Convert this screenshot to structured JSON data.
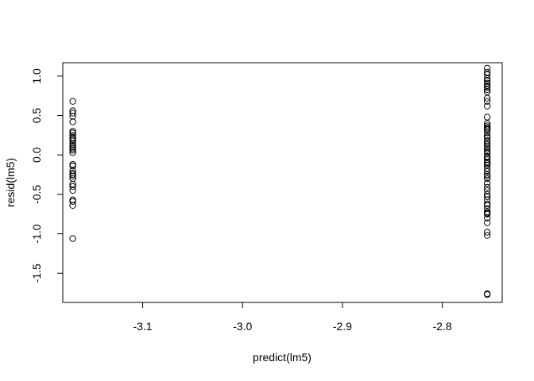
{
  "chart_data": {
    "type": "scatter",
    "title": "",
    "xlabel": "predict(lm5)",
    "ylabel": "resid(lm5)",
    "xlim": [
      -3.18,
      -2.74
    ],
    "ylim": [
      -1.87,
      1.17
    ],
    "xticks": [
      -3.1,
      -3.0,
      -2.9,
      -2.8
    ],
    "xtick_labels": [
      "-3.1",
      "-3.0",
      "-2.9",
      "-2.8"
    ],
    "yticks": [
      -1.5,
      -1.0,
      -0.5,
      0.0,
      0.5,
      1.0
    ],
    "ytick_labels": [
      "-1.5",
      "-1.0",
      "-0.5",
      "0.0",
      "0.5",
      "1.0"
    ],
    "grid": false,
    "legend": "none",
    "marker": "open-circle",
    "series": [
      {
        "x": [
          -3.17,
          -3.17,
          -3.17,
          -3.17,
          -3.17,
          -3.17,
          -3.17,
          -3.17,
          -3.17,
          -3.17,
          -3.17,
          -3.17,
          -3.17,
          -3.17,
          -3.17,
          -3.17,
          -3.17,
          -3.17,
          -3.17,
          -3.17,
          -3.17,
          -3.17,
          -3.17,
          -3.17,
          -3.17,
          -3.17,
          -3.17,
          -3.17,
          -3.17,
          -3.17,
          -3.17
        ],
        "y": [
          0.68,
          0.56,
          0.53,
          0.49,
          0.42,
          0.3,
          0.28,
          0.25,
          0.22,
          0.2,
          0.15,
          0.12,
          0.08,
          0.06,
          0.03,
          -0.12,
          -0.14,
          -0.2,
          -0.23,
          -0.27,
          -0.3,
          -0.37,
          -0.4,
          -0.45,
          -0.57,
          -0.59,
          -0.64,
          -1.06,
          0.18,
          -0.25,
          0.1
        ]
      },
      {
        "x": [
          -2.755,
          -2.755,
          -2.755,
          -2.755,
          -2.755,
          -2.755,
          -2.755,
          -2.755,
          -2.755,
          -2.755,
          -2.755,
          -2.755,
          -2.755,
          -2.755,
          -2.755,
          -2.755,
          -2.755,
          -2.755,
          -2.755,
          -2.755,
          -2.755,
          -2.755,
          -2.755,
          -2.755,
          -2.755,
          -2.755,
          -2.755,
          -2.755,
          -2.755,
          -2.755,
          -2.755,
          -2.755,
          -2.755,
          -2.755,
          -2.755,
          -2.755,
          -2.755,
          -2.755,
          -2.755,
          -2.755,
          -2.755,
          -2.755,
          -2.755,
          -2.755,
          -2.755,
          -2.755,
          -2.755,
          -2.755,
          -2.755,
          -2.755,
          -2.755,
          -2.755,
          -2.755,
          -2.755,
          -2.755,
          -2.755,
          -2.755,
          -2.755
        ],
        "y": [
          1.1,
          1.05,
          1.02,
          0.97,
          0.94,
          0.91,
          0.86,
          0.83,
          0.8,
          0.72,
          0.62,
          0.48,
          0.4,
          0.37,
          0.35,
          0.32,
          0.28,
          0.24,
          0.22,
          0.18,
          0.13,
          0.1,
          0.07,
          0.04,
          0.02,
          -0.02,
          -0.06,
          -0.09,
          -0.13,
          -0.17,
          -0.21,
          -0.25,
          -0.3,
          -0.36,
          -0.41,
          -0.5,
          -0.53,
          -0.57,
          -0.64,
          -0.68,
          -0.72,
          -0.75,
          -0.8,
          -0.86,
          -0.98,
          -1.02,
          -1.76,
          -1.77,
          0.88,
          0.68,
          0.15,
          -0.03,
          -0.27,
          -0.45,
          -0.62,
          -0.74,
          0.33,
          -0.11
        ]
      }
    ]
  }
}
